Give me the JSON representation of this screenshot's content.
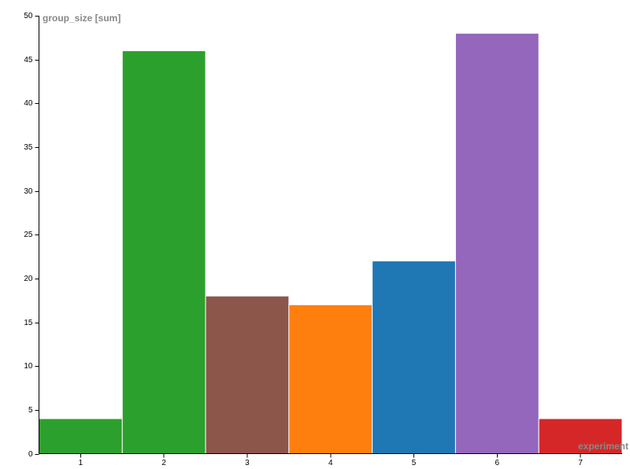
{
  "chart_data": {
    "type": "bar",
    "y_label": "group_size [sum]",
    "x_label": "experiment",
    "categories": [
      "1",
      "2",
      "3",
      "4",
      "5",
      "6",
      "7"
    ],
    "values": [
      4,
      46,
      18,
      17,
      22,
      48,
      4
    ],
    "colors": [
      "#2ca02c",
      "#2ca02c",
      "#8c564b",
      "#ff7f0e",
      "#1f77b4",
      "#9467bd",
      "#d62728"
    ],
    "ylim": [
      0,
      50
    ],
    "yticks": [
      0,
      5,
      10,
      15,
      20,
      25,
      30,
      35,
      40,
      45,
      50
    ]
  }
}
